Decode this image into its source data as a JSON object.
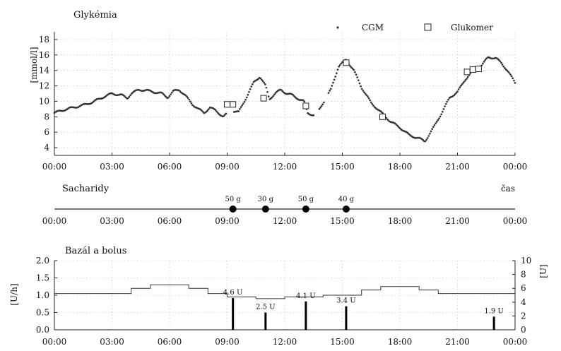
{
  "chart_data": [
    {
      "type": "scatter",
      "title": "Glykémia",
      "ylabel": "[mmol/l]",
      "xlabel": "",
      "ylim": [
        3,
        19
      ],
      "xlim": [
        0,
        24
      ],
      "yticks": [
        4,
        6,
        8,
        10,
        12,
        14,
        16,
        18
      ],
      "xticks": [
        "00:00",
        "03:00",
        "06:00",
        "09:00",
        "12:00",
        "15:00",
        "18:00",
        "21:00",
        "00:00"
      ],
      "grid": true,
      "legend": "top-right",
      "series": [
        {
          "name": "CGM",
          "marker": "dot",
          "knots": [
            [
              0.0,
              8.5
            ],
            [
              0.5,
              8.9
            ],
            [
              1.0,
              9.2
            ],
            [
              1.5,
              9.5
            ],
            [
              2.0,
              9.9
            ],
            [
              2.5,
              10.5
            ],
            [
              3.0,
              11.0
            ],
            [
              3.5,
              10.8
            ],
            [
              3.8,
              10.4
            ],
            [
              4.0,
              11.0
            ],
            [
              4.4,
              11.5
            ],
            [
              4.8,
              11.4
            ],
            [
              5.2,
              11.2
            ],
            [
              5.6,
              11.0
            ],
            [
              5.9,
              10.5
            ],
            [
              6.2,
              11.3
            ],
            [
              6.5,
              11.5
            ],
            [
              6.8,
              10.8
            ],
            [
              7.2,
              9.6
            ],
            [
              7.5,
              9.0
            ],
            [
              7.8,
              8.5
            ],
            [
              8.1,
              9.2
            ],
            [
              8.4,
              8.8
            ],
            [
              8.8,
              8.0
            ],
            [
              9.2,
              8.8
            ],
            [
              9.6,
              8.6
            ],
            [
              10.0,
              10.5
            ],
            [
              10.4,
              12.5
            ],
            [
              10.7,
              13.2
            ],
            [
              11.0,
              12.0
            ],
            [
              11.2,
              10.3
            ],
            [
              11.5,
              11.0
            ],
            [
              11.8,
              11.5
            ],
            [
              12.1,
              11.0
            ],
            [
              12.4,
              10.8
            ],
            [
              12.8,
              10.2
            ],
            [
              13.0,
              10.0
            ],
            [
              13.2,
              8.5
            ],
            [
              13.6,
              8.1
            ],
            [
              14.0,
              9.8
            ],
            [
              14.4,
              11.5
            ],
            [
              14.8,
              14.5
            ],
            [
              15.2,
              15.4
            ],
            [
              15.6,
              14.0
            ],
            [
              16.0,
              11.8
            ],
            [
              16.5,
              9.8
            ],
            [
              17.0,
              8.6
            ],
            [
              17.5,
              7.4
            ],
            [
              18.0,
              6.6
            ],
            [
              18.5,
              5.6
            ],
            [
              19.0,
              5.2
            ],
            [
              19.3,
              4.8
            ],
            [
              19.8,
              6.8
            ],
            [
              20.2,
              8.6
            ],
            [
              20.6,
              10.5
            ],
            [
              21.0,
              11.2
            ],
            [
              21.4,
              12.8
            ],
            [
              21.8,
              14.0
            ],
            [
              22.2,
              14.5
            ],
            [
              22.6,
              15.7
            ],
            [
              23.0,
              15.6
            ],
            [
              23.3,
              14.9
            ],
            [
              23.6,
              14.0
            ],
            [
              24.0,
              12.4
            ]
          ]
        },
        {
          "name": "Glukomer",
          "marker": "square",
          "points": [
            [
              9.0,
              9.6
            ],
            [
              9.3,
              9.6
            ],
            [
              10.9,
              10.4
            ],
            [
              13.1,
              9.4
            ],
            [
              15.2,
              15.0
            ],
            [
              17.1,
              8.0
            ],
            [
              21.5,
              13.8
            ],
            [
              21.8,
              14.1
            ],
            [
              22.1,
              14.2
            ]
          ]
        }
      ]
    },
    {
      "type": "scatter",
      "title": "Sacharidy",
      "xlabel": "čas",
      "xlim": [
        0,
        24
      ],
      "xticks": [
        "00:00",
        "03:00",
        "06:00",
        "09:00",
        "12:00",
        "15:00",
        "18:00",
        "21:00",
        "00:00"
      ],
      "series": [
        {
          "name": "",
          "points": [
            {
              "x": 9.3,
              "label": "50 g"
            },
            {
              "x": 11.0,
              "label": "30 g"
            },
            {
              "x": 13.1,
              "label": "50 g"
            },
            {
              "x": 15.2,
              "label": "40 g"
            }
          ]
        }
      ]
    },
    {
      "type": "bar",
      "title": "Bazál a bolus",
      "ylabel": "[U/h]",
      "y2label": "[U]",
      "ylim": [
        0,
        2
      ],
      "y2lim": [
        0,
        10
      ],
      "yticks": [
        "0.0",
        "0.5",
        "1.0",
        "1.5",
        "2.0"
      ],
      "y2ticks": [
        "0",
        "2",
        "4",
        "6",
        "8",
        "10"
      ],
      "xlim": [
        0,
        24
      ],
      "xticks": [
        "00:00",
        "03:00",
        "06:00",
        "09:00",
        "12:00",
        "15:00",
        "18:00",
        "21:00",
        "00:00"
      ],
      "grid": true,
      "series": [
        {
          "name": "",
          "kind": "step-line",
          "axis": "left",
          "steps": [
            [
              0,
              1.05
            ],
            [
              4.0,
              1.05
            ],
            [
              4.0,
              1.2
            ],
            [
              5.0,
              1.2
            ],
            [
              5.0,
              1.3
            ],
            [
              7.0,
              1.3
            ],
            [
              7.0,
              1.2
            ],
            [
              8.0,
              1.2
            ],
            [
              8.0,
              1.05
            ],
            [
              9.0,
              1.05
            ],
            [
              9.0,
              0.95
            ],
            [
              10.5,
              0.95
            ],
            [
              10.5,
              0.9
            ],
            [
              12.0,
              0.9
            ],
            [
              12.0,
              0.95
            ],
            [
              14.0,
              0.95
            ],
            [
              14.0,
              1.0
            ],
            [
              16.0,
              1.0
            ],
            [
              16.0,
              1.15
            ],
            [
              17.0,
              1.15
            ],
            [
              17.0,
              1.25
            ],
            [
              19.0,
              1.25
            ],
            [
              19.0,
              1.15
            ],
            [
              20.0,
              1.15
            ],
            [
              20.0,
              1.05
            ],
            [
              24.0,
              1.05
            ]
          ]
        },
        {
          "name": "",
          "kind": "bolus",
          "axis": "right",
          "points": [
            {
              "x": 9.3,
              "value": 4.6,
              "label": "4.6 U"
            },
            {
              "x": 11.0,
              "value": 2.5,
              "label": "2.5 U"
            },
            {
              "x": 13.1,
              "value": 4.1,
              "label": "4.1 U"
            },
            {
              "x": 15.2,
              "value": 3.4,
              "label": "3.4 U"
            },
            {
              "x": 22.9,
              "value": 1.9,
              "label": "1.9 U"
            }
          ]
        }
      ]
    }
  ]
}
